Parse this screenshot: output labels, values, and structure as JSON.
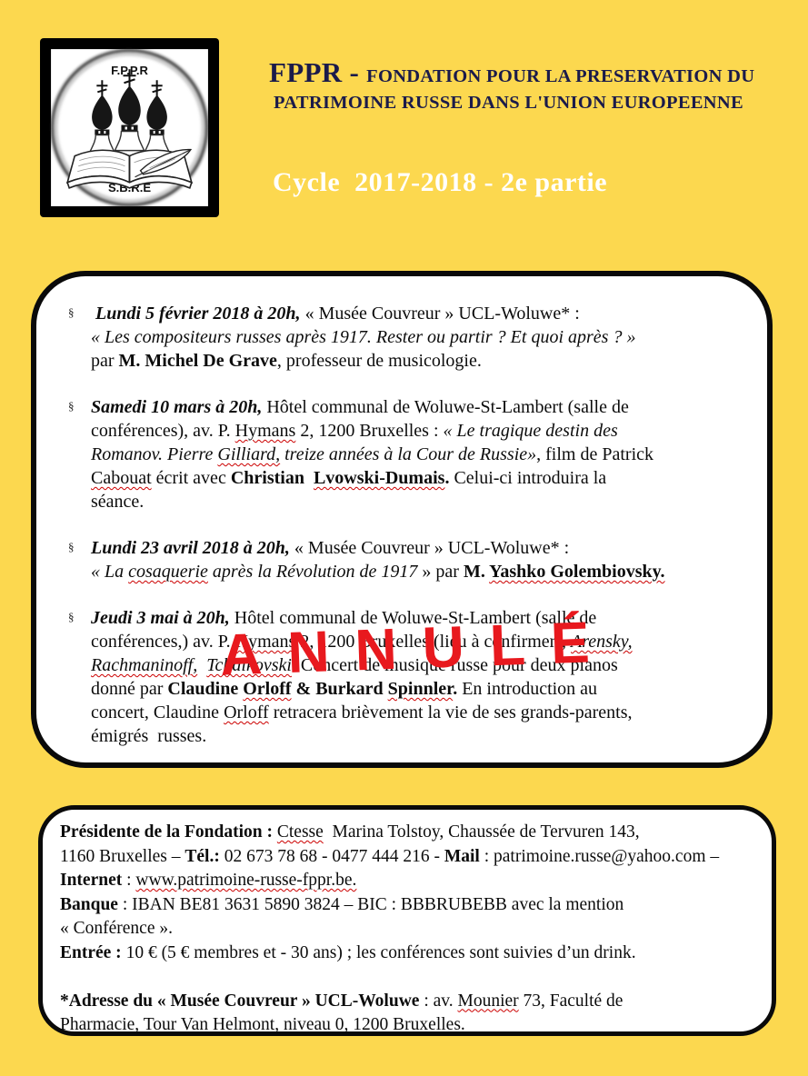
{
  "colors": {
    "background": "#fcd84f",
    "box_background": "#ffffff",
    "box_border": "#0a0a0a",
    "header_navy": "#1b1b4a",
    "cycle_white": "#ffffff",
    "stamp_red": "#e8191e",
    "squiggle_red": "#cc0000"
  },
  "logo": {
    "top_text": "F.P.P.R",
    "bottom_text": "S.B.R.E",
    "icon": "orthodox-domes-open-book-quill"
  },
  "header": {
    "acronym": "FPPR - ",
    "title_line1": "FONDATION POUR LA PRESERVATION DU",
    "title_line2": "PATRIMOINE RUSSE DANS  L'UNION EUROPEENNE",
    "cycle": "Cycle  2017-2018 - 2e partie"
  },
  "annule": {
    "text": "ANNULÉ"
  },
  "events_marker": "§",
  "events": [
    {
      "lines": [
        [
          {
            "t": " Lundi 5 février 2018 à 20h,",
            "b": true,
            "i": true
          },
          {
            "t": " « Musée Couvreur » UCL-Woluwe* :"
          }
        ],
        [
          {
            "t": "« Les compositeurs russes après 1917. Rester ou partir ? Et quoi après ? »",
            "i": true
          }
        ],
        [
          {
            "t": "par "
          },
          {
            "t": "M. Michel De Grave",
            "b": true
          },
          {
            "t": ", professeur de musicologie."
          }
        ]
      ]
    },
    {
      "lines": [
        [
          {
            "t": "Samedi 10 mars à 20h,",
            "b": true,
            "i": true
          },
          {
            "t": " Hôtel communal de Woluwe-St-Lambert (salle de"
          }
        ],
        [
          {
            "t": "conférences), av. P. "
          },
          {
            "t": "Hymans",
            "sq": true
          },
          {
            "t": " 2, 1200 Bruxelles : "
          },
          {
            "t": "« Le tragique destin des",
            "i": true
          }
        ],
        [
          {
            "t": "Romanov. Pierre ",
            "i": true
          },
          {
            "t": "Gilliard,",
            "i": true,
            "sq": true
          },
          {
            "t": " treize années à la Cour de Russie»",
            "i": true
          },
          {
            "t": ", film de Patrick"
          }
        ],
        [
          {
            "t": "Cabouat",
            "sq": true
          },
          {
            "t": " écrit avec "
          },
          {
            "t": "Christian  ",
            "b": true
          },
          {
            "t": "Lvowski-Dumais",
            "b": true,
            "sq": true
          },
          {
            "t": ".",
            "b": true
          },
          {
            "t": " Celui-ci introduira la"
          }
        ],
        [
          {
            "t": "séance."
          }
        ]
      ]
    },
    {
      "lines": [
        [
          {
            "t": "Lundi 23 avril 2018 à 20h,",
            "b": true,
            "i": true
          },
          {
            "t": " « Musée Couvreur » UCL-Woluwe* :"
          }
        ],
        [
          {
            "t": "« ",
            "i": true
          },
          {
            "t": "La ",
            "i": true
          },
          {
            "t": "cosaquerie",
            "i": true,
            "sq": true
          },
          {
            "t": " après la Révolution de 1917",
            "i": true
          },
          {
            "t": " » par "
          },
          {
            "t": "M. ",
            "b": true
          },
          {
            "t": "Yashko Golembiovsky.",
            "b": true,
            "sq": true
          }
        ]
      ]
    },
    {
      "lines": [
        [
          {
            "t": "Jeudi 3 mai à 20h,",
            "b": true,
            "i": true
          },
          {
            "t": " Hôtel communal de Woluwe-St-Lambert (salle de"
          }
        ],
        [
          {
            "t": "conférences,) av. P. "
          },
          {
            "t": "Hymans",
            "sq": true
          },
          {
            "t": " 2, 1200 Bruxelles (lieu à confirmer), "
          },
          {
            "t": "Arensky,",
            "i": true,
            "sq": true
          }
        ],
        [
          {
            "t": "Rachmaninoff,",
            "i": true,
            "sq": true
          },
          {
            "t": "  ",
            "i": true
          },
          {
            "t": "Tchaikovski",
            "i": true,
            "sq": true
          },
          {
            "t": ". Concert de musique russe pour deux pianos"
          }
        ],
        [
          {
            "t": "donné par "
          },
          {
            "t": "Claudine ",
            "b": true
          },
          {
            "t": "Orloff",
            "b": true,
            "sq": true
          },
          {
            "t": " & Burkard ",
            "b": true
          },
          {
            "t": "Spinnler",
            "b": true,
            "sq": true
          },
          {
            "t": ".",
            "b": true
          },
          {
            "t": " En introduction au"
          }
        ],
        [
          {
            "t": "concert, Claudine "
          },
          {
            "t": "Orloff",
            "sq": true
          },
          {
            "t": " retracera brièvement la vie de ses grands-parents,"
          }
        ],
        [
          {
            "t": "émigrés  russes."
          }
        ]
      ]
    }
  ],
  "footer": {
    "lines": [
      [
        {
          "t": "Présidente de la Fondation :",
          "b": true
        },
        {
          "t": " "
        },
        {
          "t": "Ctesse",
          "sq": true
        },
        {
          "t": "  Marina Tolstoy, Chaussée de Tervuren 143,"
        }
      ],
      [
        {
          "t": "1160 Bruxelles – "
        },
        {
          "t": "Tél.:",
          "b": true
        },
        {
          "t": " 02 673 78 68 - 0477 444 216 - "
        },
        {
          "t": "Mail",
          "b": true
        },
        {
          "t": " : patrimoine.russe@yahoo.com –"
        }
      ],
      [
        {
          "t": "Internet",
          "b": true
        },
        {
          "t": " : "
        },
        {
          "t": "www.patrimoine-russe-fppr.be.",
          "sq": true
        }
      ],
      [
        {
          "t": "Banque",
          "b": true
        },
        {
          "t": " : IBAN BE81 3631 5890 3824 – BIC : BBBRUBEBB avec la mention"
        }
      ],
      [
        {
          "t": "« Conférence »."
        }
      ],
      [
        {
          "t": "Entrée :",
          "b": true
        },
        {
          "t": " 10 € (5 € membres et - 30 ans) ; les conférences sont suivies d’un drink."
        }
      ],
      [],
      [
        {
          "t": "*Adresse du « Musée Couvreur » UCL-Woluwe",
          "b": true
        },
        {
          "t": " : av. "
        },
        {
          "t": "Mounier",
          "sq": true
        },
        {
          "t": " 73, Faculté de"
        }
      ],
      [
        {
          "t": "Pharmacie, Tour Van Helmont, niveau 0, 1200 Bruxelles."
        }
      ]
    ]
  }
}
